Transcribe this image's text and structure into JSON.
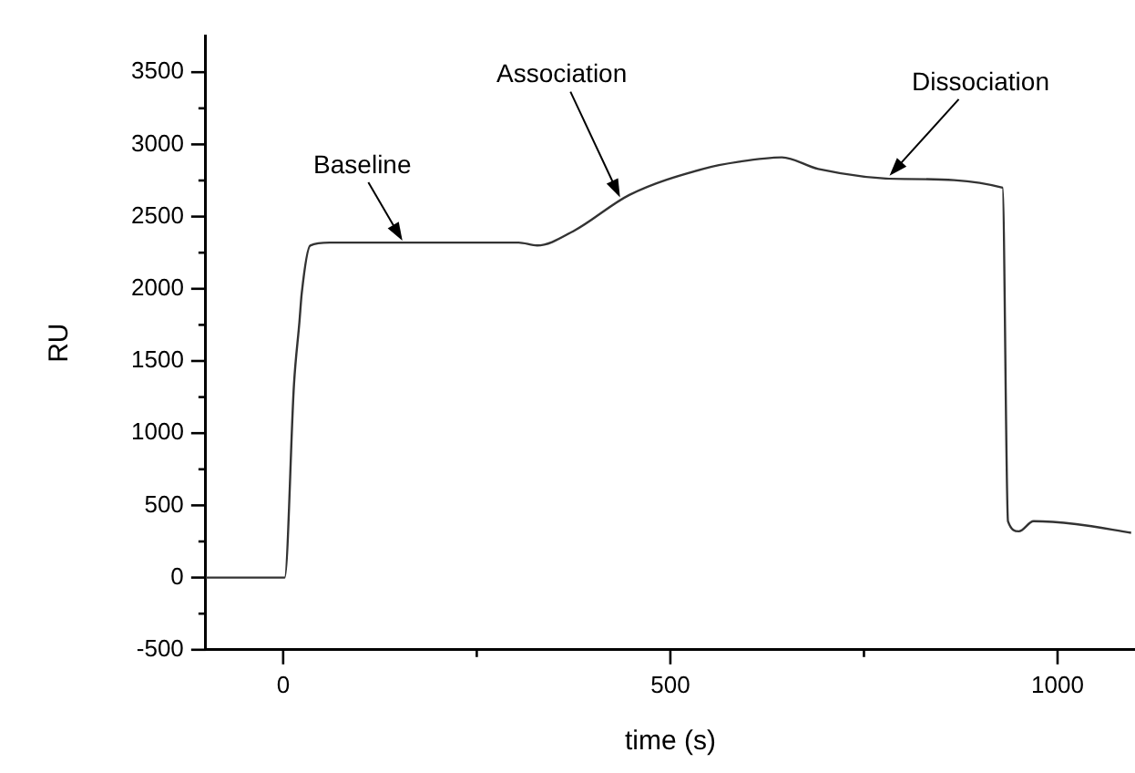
{
  "chart_data": {
    "type": "line",
    "xlabel": "time (s)",
    "ylabel": "RU",
    "series": [
      {
        "color": "#333333",
        "x": [
          -100,
          0,
          2,
          14,
          21,
          24,
          35,
          60,
          150,
          250,
          304,
          328,
          375,
          447,
          542,
          589,
          644,
          691,
          803,
          929,
          936,
          950,
          969,
          1024,
          1095
        ],
        "values": [
          0,
          0,
          0,
          1340,
          1770,
          1970,
          2300,
          2320,
          2320,
          2320,
          2320,
          2300,
          2400,
          2650,
          2830,
          2880,
          2910,
          2830,
          2760,
          2700,
          390,
          320,
          390,
          370,
          310
        ]
      }
    ],
    "xlim": [
      -100,
      1100
    ],
    "xticks": [
      0,
      {
        "value": 250,
        "label": null
      },
      500,
      {
        "value": 750,
        "label": null
      },
      1000
    ],
    "ylim": [
      -500,
      3750
    ],
    "yticks": [
      -500,
      {
        "value": -250,
        "label": null
      },
      0,
      {
        "value": 250,
        "label": null
      },
      500,
      {
        "value": 750,
        "label": null
      },
      1000,
      {
        "value": 1250,
        "label": null
      },
      1500,
      {
        "value": 1750,
        "label": null
      },
      2000,
      {
        "value": 2250,
        "label": null
      },
      2500,
      {
        "value": 2750,
        "label": null
      },
      3000,
      {
        "value": 3250,
        "label": null
      },
      3500
    ],
    "annotations": [
      {
        "text": "Baseline",
        "x": 154,
        "y": 2320
      },
      {
        "text": "Association",
        "x": 435,
        "y": 2620
      },
      {
        "text": "Dissociation",
        "x": 783,
        "y": 2770
      }
    ],
    "grid": false,
    "legend": false,
    "marker": "none",
    "line_style": "solid"
  }
}
